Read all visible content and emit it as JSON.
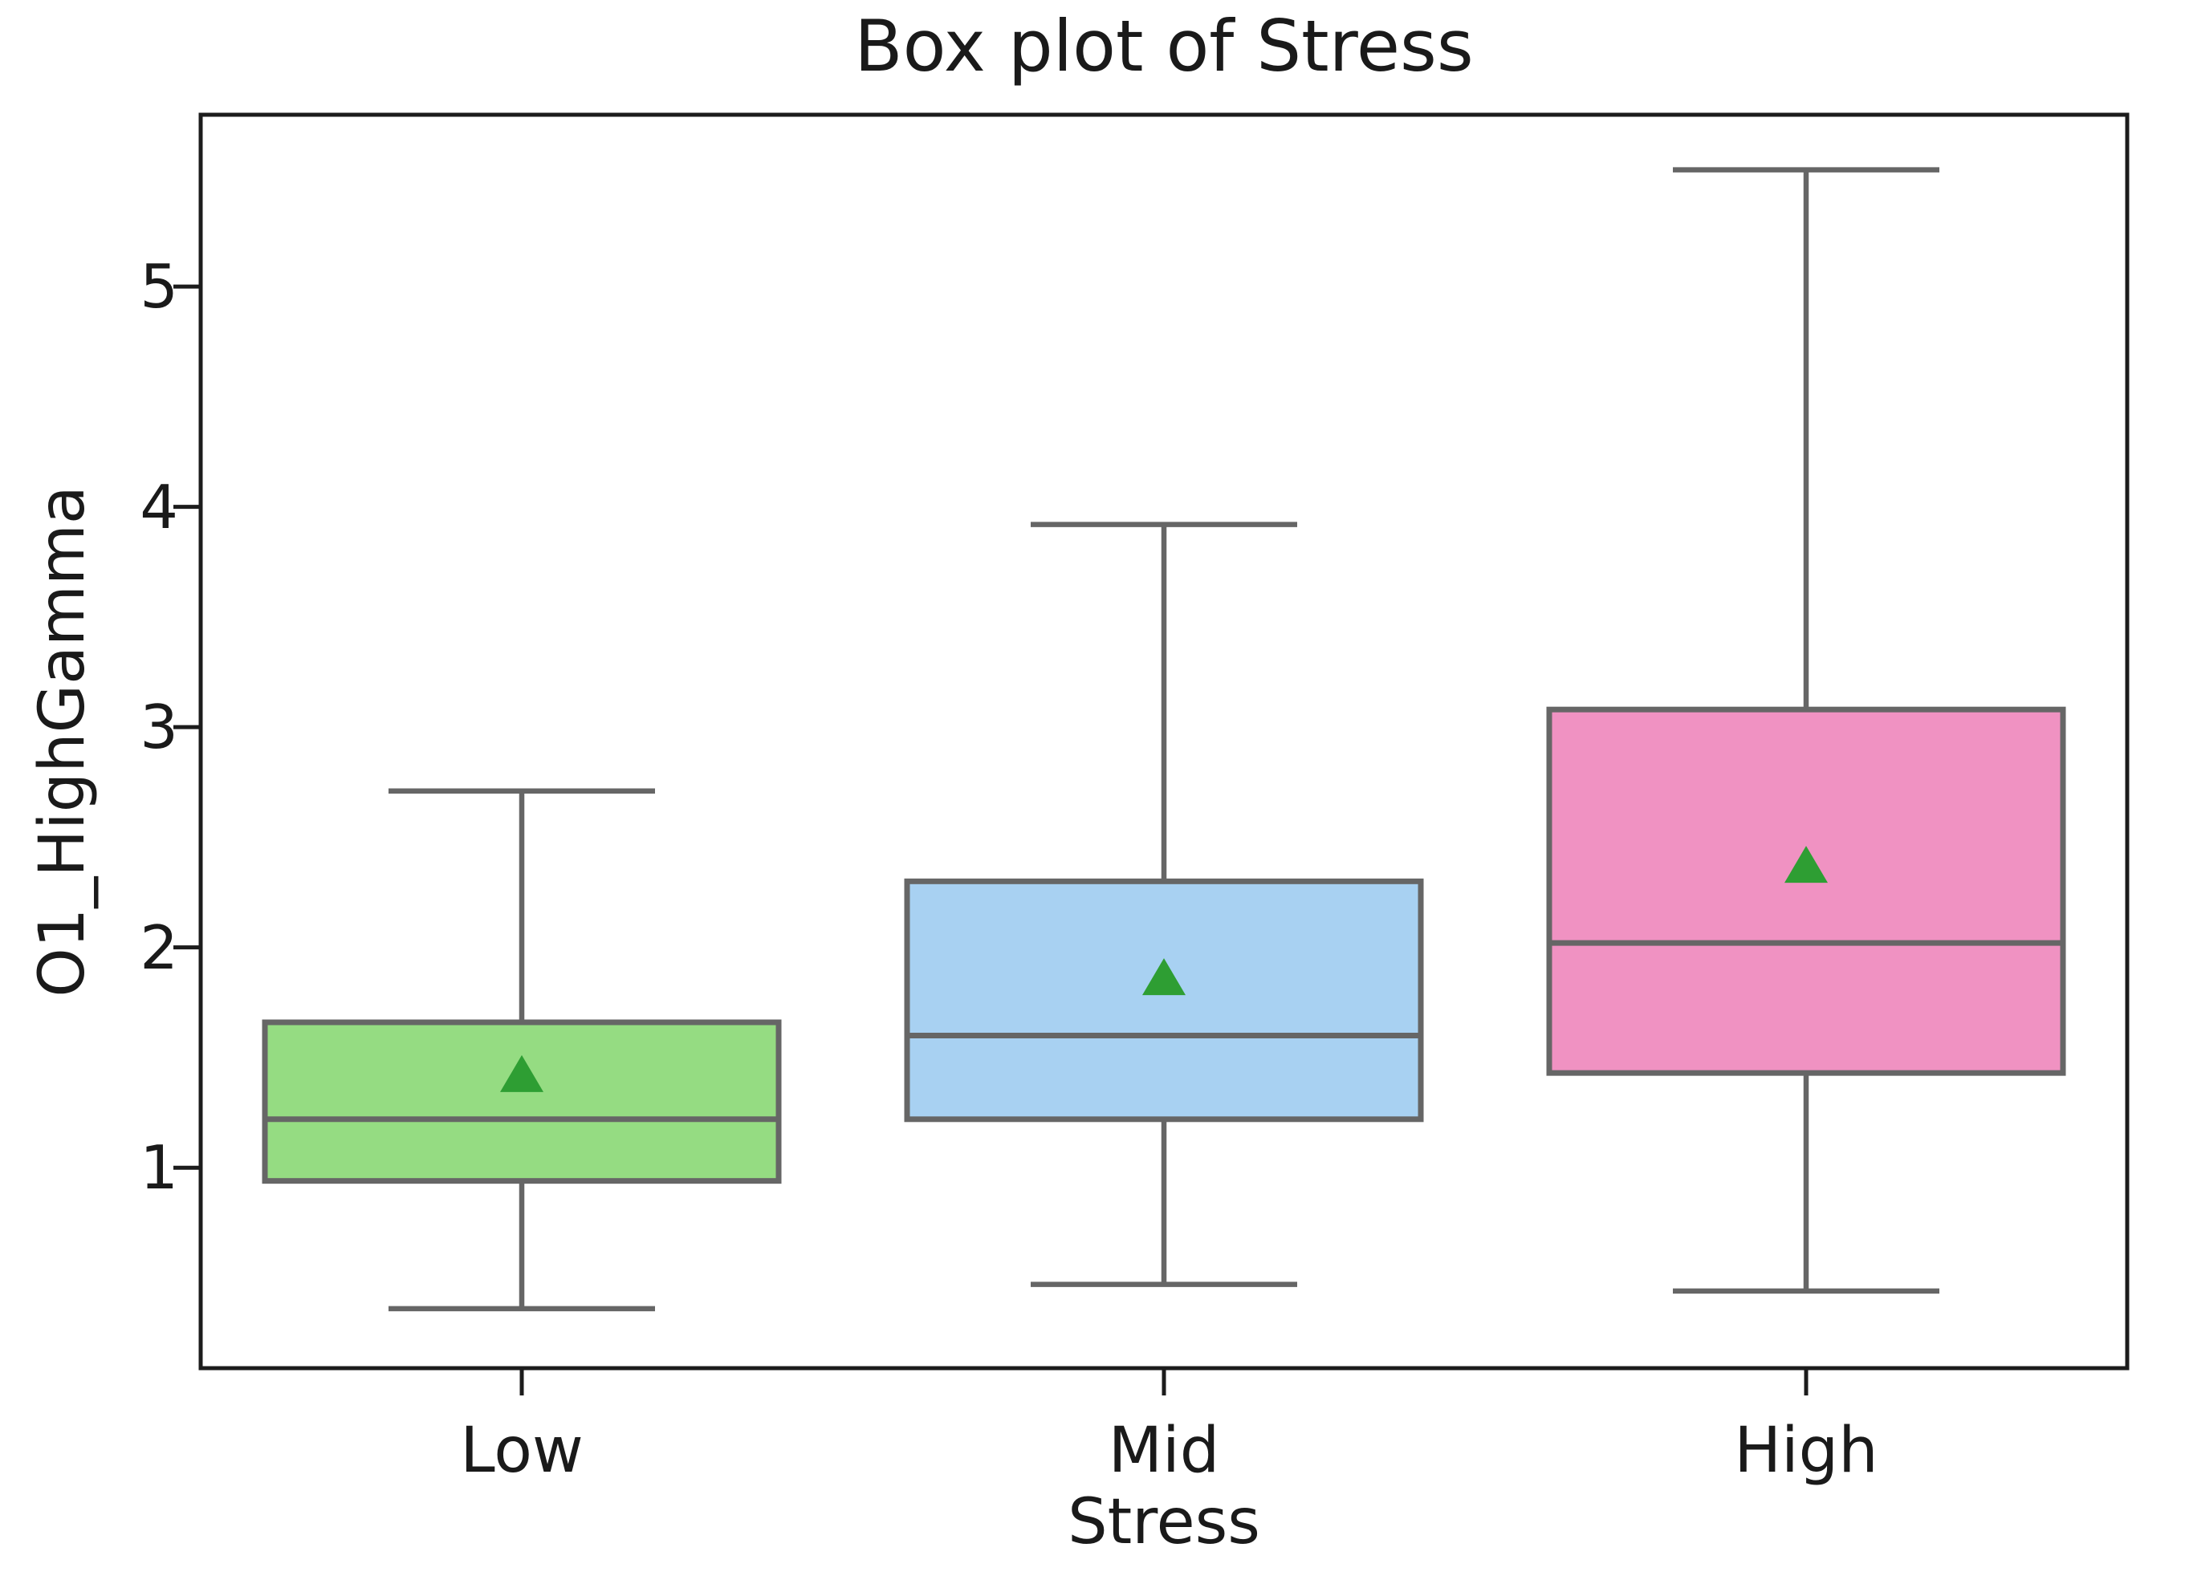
{
  "title": "Box plot of Stress",
  "chart_data": {
    "type": "boxplot",
    "title": "Box plot of Stress",
    "xlabel": "Stress",
    "ylabel": "O1_HighGamma",
    "categories": [
      "Low",
      "Mid",
      "High"
    ],
    "yticks": [
      1,
      2,
      3,
      4,
      5
    ],
    "ylim": [
      0.09,
      5.78
    ],
    "grid": false,
    "legend": "none",
    "series": [
      {
        "category": "Low",
        "whisker_low": 0.36,
        "q1": 0.94,
        "median": 1.22,
        "q3": 1.66,
        "whisker_high": 2.71,
        "mean": 1.42,
        "fill_color": "#95dc82"
      },
      {
        "category": "Mid",
        "whisker_low": 0.47,
        "q1": 1.22,
        "median": 1.6,
        "q3": 2.3,
        "whisker_high": 3.92,
        "mean": 1.86,
        "fill_color": "#a8d1f2"
      },
      {
        "category": "High",
        "whisker_low": 0.44,
        "q1": 1.43,
        "median": 2.02,
        "q3": 3.08,
        "whisker_high": 5.53,
        "mean": 2.37,
        "fill_color": "#f092c2"
      }
    ],
    "mean_marker": {
      "shape": "triangle-up",
      "color": "#2e9e33"
    },
    "colors": {
      "box_edge": "#666666",
      "whisker": "#666666",
      "median": "#666666",
      "spine": "#1c1c1c",
      "text": "#1a1a1a",
      "background": "#ffffff"
    }
  }
}
